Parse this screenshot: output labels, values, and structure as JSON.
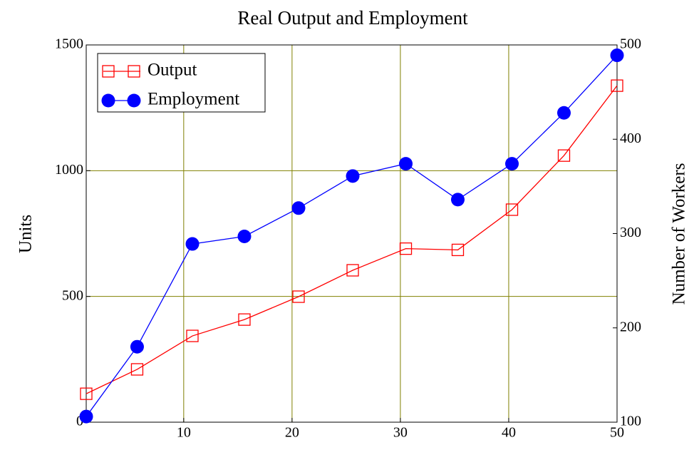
{
  "chart_data": {
    "type": "line",
    "title": "Real Output and Employment",
    "ylabel": "Units",
    "y2label": "Number of Workers",
    "x": [
      1,
      5.7,
      10.8,
      15.6,
      20.6,
      25.6,
      30.5,
      35.3,
      40.3,
      45.1,
      50
    ],
    "series": [
      {
        "name": "Output",
        "color": "#ff0000",
        "marker": "square",
        "values": [
          113,
          210,
          343,
          408,
          499,
          604,
          690,
          685,
          845,
          1060,
          1338
        ]
      },
      {
        "name": "Employment",
        "color": "#0000ff",
        "marker": "circle",
        "axis": "y2",
        "values": [
          106,
          180,
          289,
          297,
          327,
          361,
          374,
          336,
          374,
          428,
          489
        ]
      }
    ],
    "xlim": [
      1,
      50
    ],
    "xticks": [
      10,
      20,
      30,
      40,
      50
    ],
    "ylim": [
      0,
      1500
    ],
    "yticks": [
      0,
      500,
      1000,
      1500
    ],
    "y2lim": [
      100,
      500
    ],
    "y2ticks": [
      100,
      200,
      300,
      400,
      500
    ],
    "grid": true,
    "grid_color": "#808000",
    "legend": "upper left"
  }
}
